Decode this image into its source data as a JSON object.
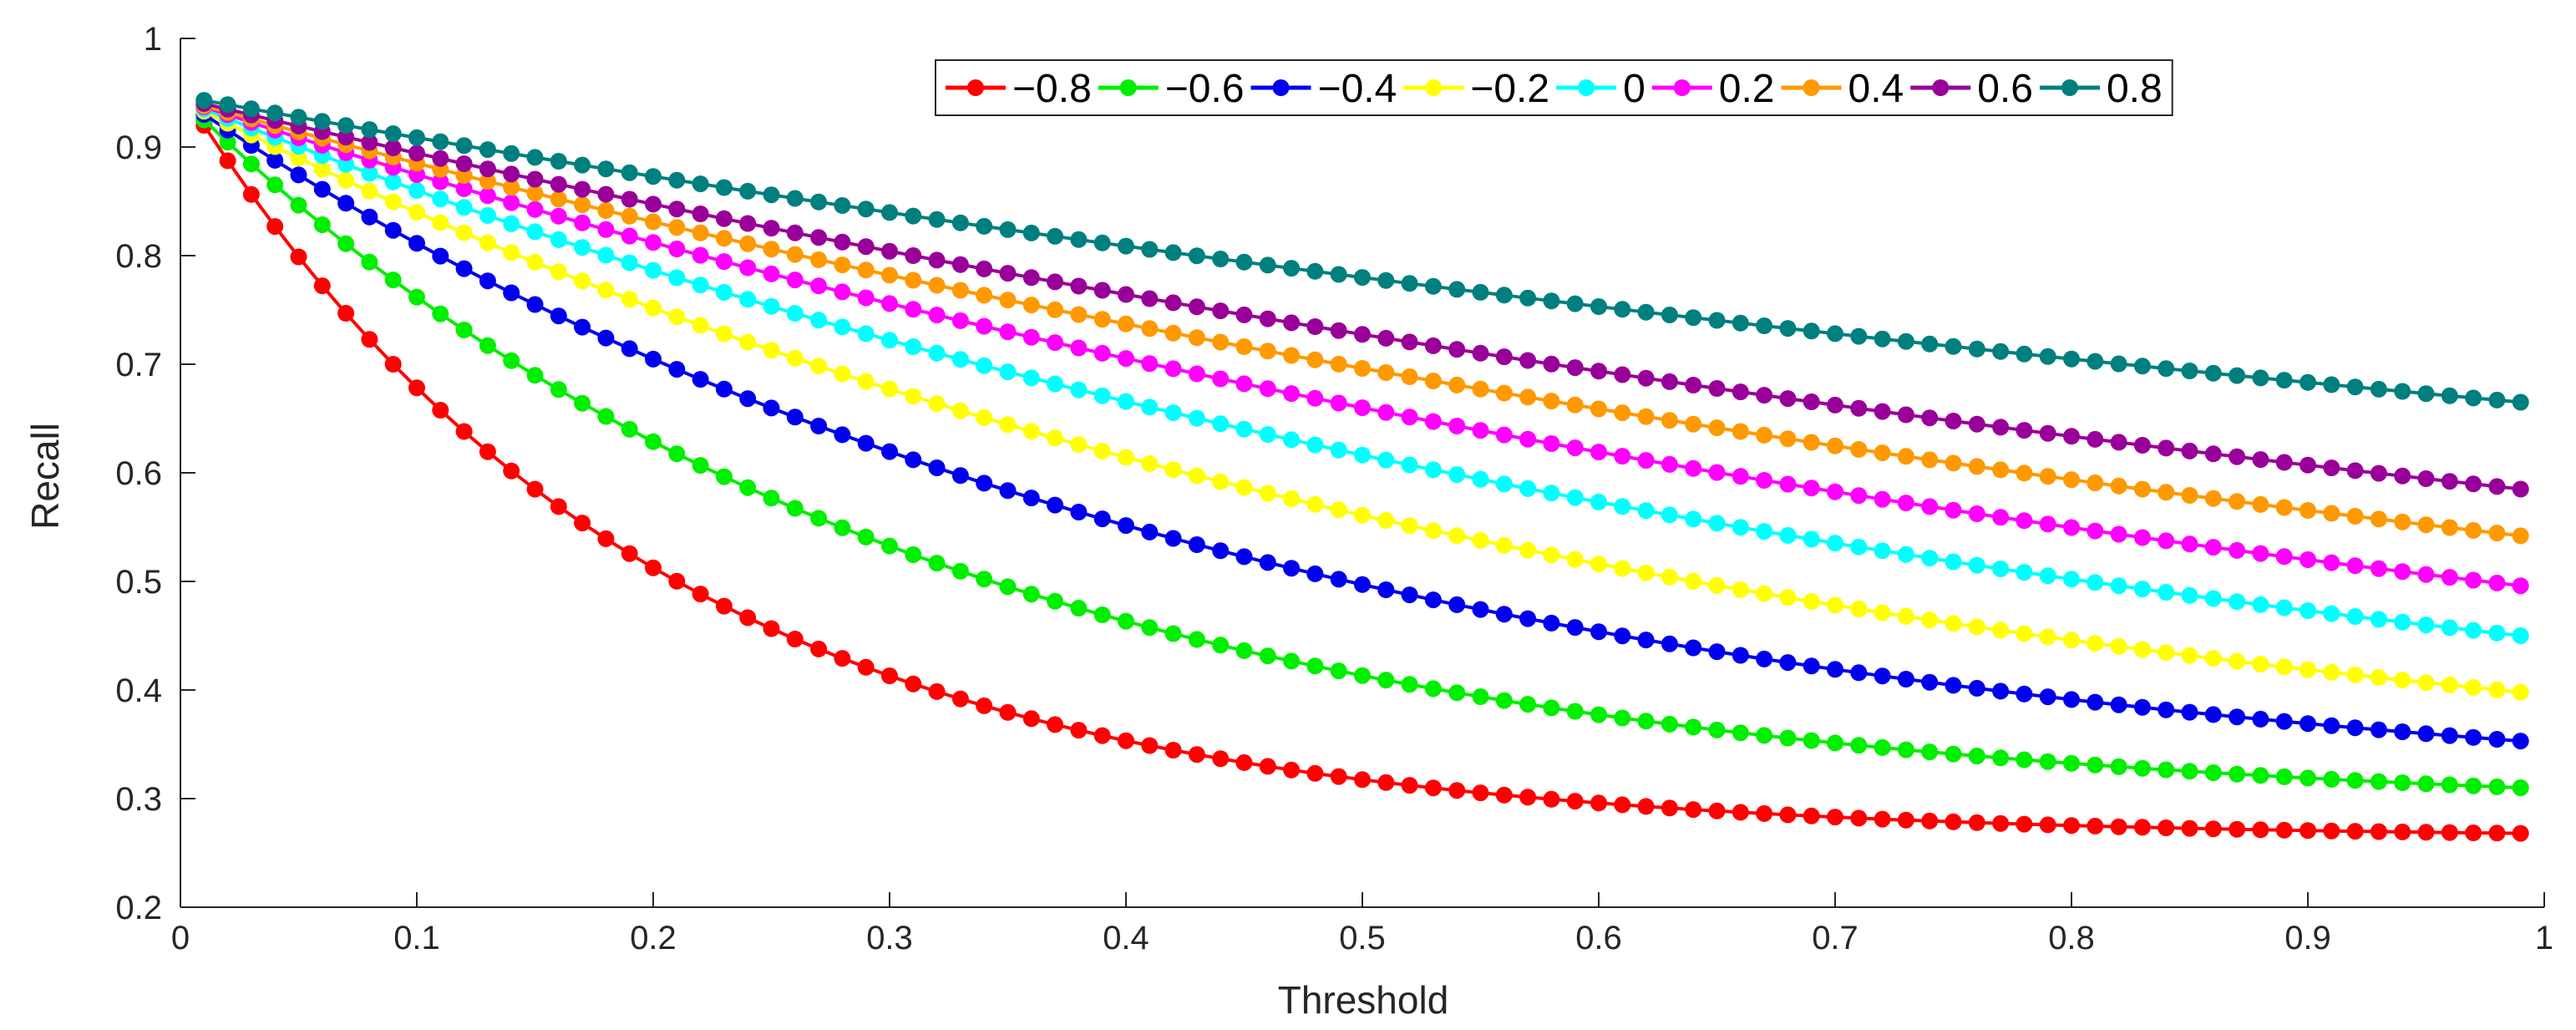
{
  "chart_data": {
    "type": "line",
    "title": "",
    "xlabel": "Threshold",
    "ylabel": "Recall",
    "xlim": [
      0,
      1
    ],
    "ylim": [
      0.2,
      1
    ],
    "grid": false,
    "legend_position": "top-right",
    "legend_orientation": "horizontal",
    "xticks": [
      0,
      0.1,
      0.2,
      0.3,
      0.4,
      0.5,
      0.6,
      0.7,
      0.8,
      0.9,
      1
    ],
    "xtick_labels": [
      "0",
      "0.1",
      "0.2",
      "0.3",
      "0.4",
      "0.5",
      "0.6",
      "0.7",
      "0.8",
      "0.9",
      "1"
    ],
    "yticks": [
      0.2,
      0.3,
      0.4,
      0.5,
      0.6,
      0.7,
      0.8,
      0.9,
      1
    ],
    "ytick_labels": [
      "0.2",
      "0.3",
      "0.4",
      "0.5",
      "0.6",
      "0.7",
      "0.8",
      "0.9",
      "1"
    ],
    "x_start": 0.01,
    "x_step": 0.01,
    "points_per_series": 99,
    "series": [
      {
        "name": "−0.8",
        "color": "#ff0000",
        "y_start": 0.92,
        "y_end": 0.268,
        "curvature": 5.0
      },
      {
        "name": "−0.6",
        "color": "#00ee00",
        "y_start": 0.925,
        "y_end": 0.31,
        "curvature": 3.2
      },
      {
        "name": "−0.4",
        "color": "#0000ee",
        "y_start": 0.93,
        "y_end": 0.353,
        "curvature": 2.2
      },
      {
        "name": "−0.2",
        "color": "#ffff00",
        "y_start": 0.933,
        "y_end": 0.398,
        "curvature": 1.65
      },
      {
        "name": "0",
        "color": "#00ffff",
        "y_start": 0.935,
        "y_end": 0.45,
        "curvature": 1.3
      },
      {
        "name": "0.2",
        "color": "#ff00ff",
        "y_start": 0.937,
        "y_end": 0.496,
        "curvature": 1.05
      },
      {
        "name": "0.4",
        "color": "#ff9900",
        "y_start": 0.938,
        "y_end": 0.542,
        "curvature": 0.9
      },
      {
        "name": "0.6",
        "color": "#990099",
        "y_start": 0.94,
        "y_end": 0.585,
        "curvature": 0.8
      },
      {
        "name": "0.8",
        "color": "#007f7f",
        "y_start": 0.943,
        "y_end": 0.665,
        "curvature": 0.7
      }
    ]
  }
}
